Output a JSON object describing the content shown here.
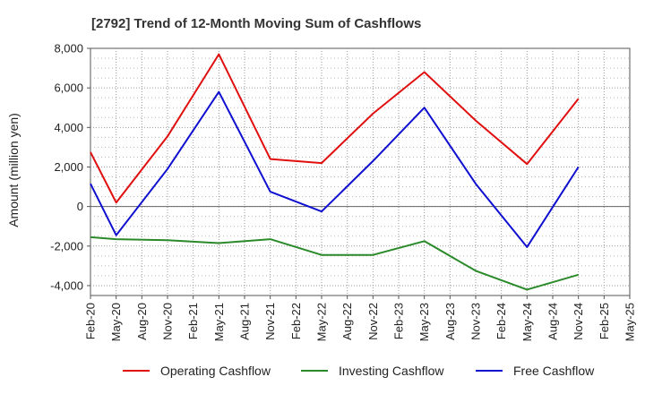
{
  "chart_data": {
    "type": "line",
    "title": "[2792]  Trend of 12-Month Moving Sum of Cashflows",
    "xlabel": "",
    "ylabel": "Amount (million yen)",
    "ylim": [
      -4500,
      8000
    ],
    "yticks": [
      -4000,
      -2000,
      0,
      2000,
      4000,
      6000,
      8000
    ],
    "ytick_labels": [
      "-4,000",
      "-2,000",
      "0",
      "2,000",
      "4,000",
      "6,000",
      "8,000"
    ],
    "categories": [
      "Feb-20",
      "May-20",
      "Aug-20",
      "Nov-20",
      "Feb-21",
      "May-21",
      "Aug-21",
      "Nov-21",
      "Feb-22",
      "May-22",
      "Aug-22",
      "Nov-22",
      "Feb-23",
      "May-23",
      "Aug-23",
      "Nov-23",
      "Feb-24",
      "May-24",
      "Aug-24",
      "Nov-24",
      "Feb-25",
      "May-25"
    ],
    "grid": true,
    "legend_position": "bottom",
    "series": [
      {
        "name": "Operating Cashflow",
        "color": "#e01010",
        "values": [
          2750,
          200,
          null,
          3550,
          null,
          7700,
          null,
          2400,
          null,
          2200,
          null,
          4700,
          null,
          6800,
          null,
          4350,
          null,
          2150,
          null,
          5450,
          null,
          null
        ]
      },
      {
        "name": "Investing Cashflow",
        "color": "#2a8a2a",
        "values": [
          -1550,
          -1650,
          null,
          -1700,
          null,
          -1850,
          null,
          -1650,
          null,
          -2450,
          null,
          -2450,
          null,
          -1750,
          null,
          -3250,
          null,
          -4200,
          null,
          -3450,
          null,
          null
        ]
      },
      {
        "name": "Free Cashflow",
        "color": "#1010d0",
        "values": [
          1150,
          -1450,
          null,
          1900,
          null,
          5800,
          null,
          750,
          null,
          -250,
          null,
          2300,
          null,
          5000,
          null,
          1150,
          null,
          -2050,
          null,
          2000,
          null,
          null
        ]
      }
    ]
  }
}
